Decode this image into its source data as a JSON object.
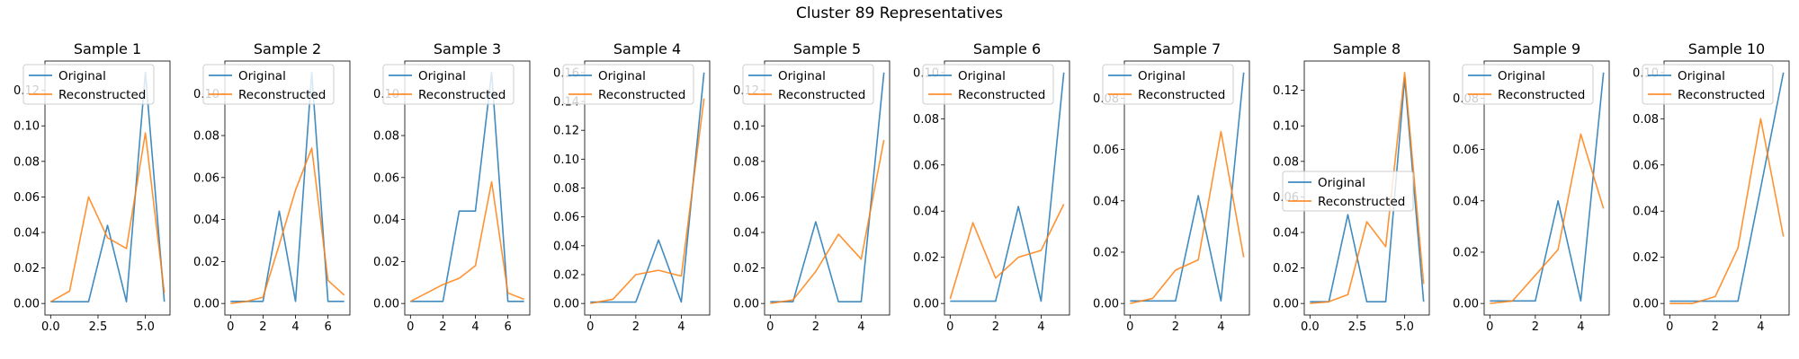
{
  "figure": {
    "suptitle": "Cluster 89 Representatives"
  },
  "legend_labels": [
    "Original",
    "Reconstructed"
  ],
  "colors": {
    "original": "#1f77b4",
    "reconstructed": "#ff7f0e"
  },
  "chart_data": [
    {
      "type": "line",
      "title": "Sample 1",
      "xlim": [
        -0.3,
        6.3
      ],
      "ylim": [
        -0.0065,
        0.1365
      ],
      "xticks": [
        0.0,
        2.5,
        5.0
      ],
      "xtick_labels": [
        "0.0",
        "2.5",
        "5.0"
      ],
      "yticks": [
        0.0,
        0.02,
        0.04,
        0.06,
        0.08,
        0.1,
        0.12
      ],
      "ytick_labels": [
        "0.00",
        "0.02",
        "0.04",
        "0.06",
        "0.08",
        "0.10",
        "0.12"
      ],
      "legend_loc": "upper-left",
      "series": [
        {
          "name": "Original",
          "x": [
            0,
            1,
            2,
            3,
            4,
            5,
            6
          ],
          "y": [
            0.001,
            0.001,
            0.001,
            0.044,
            0.001,
            0.13,
            0.001
          ]
        },
        {
          "name": "Reconstructed",
          "x": [
            0,
            1,
            2,
            3,
            4,
            5,
            6
          ],
          "y": [
            0.001,
            0.007,
            0.06,
            0.037,
            0.031,
            0.096,
            0.006
          ]
        }
      ]
    },
    {
      "type": "line",
      "title": "Sample 2",
      "xlim": [
        -0.35,
        7.35
      ],
      "ylim": [
        -0.0055,
        0.1155
      ],
      "xticks": [
        0,
        2,
        4,
        6
      ],
      "xtick_labels": [
        "0",
        "2",
        "4",
        "6"
      ],
      "yticks": [
        0.0,
        0.02,
        0.04,
        0.06,
        0.08,
        0.1
      ],
      "ytick_labels": [
        "0.00",
        "0.02",
        "0.04",
        "0.06",
        "0.08",
        "0.10"
      ],
      "legend_loc": "upper-left",
      "series": [
        {
          "name": "Original",
          "x": [
            0,
            1,
            2,
            3,
            4,
            5,
            6,
            7
          ],
          "y": [
            0.001,
            0.001,
            0.001,
            0.044,
            0.001,
            0.11,
            0.001,
            0.001
          ]
        },
        {
          "name": "Reconstructed",
          "x": [
            0,
            1,
            2,
            3,
            4,
            5,
            6,
            7
          ],
          "y": [
            0.0,
            0.001,
            0.003,
            0.028,
            0.054,
            0.074,
            0.011,
            0.004
          ]
        }
      ]
    },
    {
      "type": "line",
      "title": "Sample 3",
      "xlim": [
        -0.35,
        7.35
      ],
      "ylim": [
        -0.0055,
        0.1155
      ],
      "xticks": [
        0,
        2,
        4,
        6
      ],
      "xtick_labels": [
        "0",
        "2",
        "4",
        "6"
      ],
      "yticks": [
        0.0,
        0.02,
        0.04,
        0.06,
        0.08,
        0.1
      ],
      "ytick_labels": [
        "0.00",
        "0.02",
        "0.04",
        "0.06",
        "0.08",
        "0.10"
      ],
      "legend_loc": "upper-left",
      "series": [
        {
          "name": "Original",
          "x": [
            0,
            1,
            2,
            3,
            4,
            5,
            6,
            7
          ],
          "y": [
            0.001,
            0.001,
            0.001,
            0.044,
            0.044,
            0.11,
            0.001,
            0.001
          ]
        },
        {
          "name": "Reconstructed",
          "x": [
            0,
            1,
            2,
            3,
            4,
            5,
            6,
            7
          ],
          "y": [
            0.001,
            0.005,
            0.009,
            0.012,
            0.018,
            0.058,
            0.005,
            0.002
          ]
        }
      ]
    },
    {
      "type": "line",
      "title": "Sample 4",
      "xlim": [
        -0.25,
        5.25
      ],
      "ylim": [
        -0.008,
        0.168
      ],
      "xticks": [
        0,
        2,
        4
      ],
      "xtick_labels": [
        "0",
        "2",
        "4"
      ],
      "yticks": [
        0.0,
        0.02,
        0.04,
        0.06,
        0.08,
        0.1,
        0.12,
        0.14,
        0.16
      ],
      "ytick_labels": [
        "0.00",
        "0.02",
        "0.04",
        "0.06",
        "0.08",
        "0.10",
        "0.12",
        "0.14",
        "0.16"
      ],
      "legend_loc": "upper-left",
      "series": [
        {
          "name": "Original",
          "x": [
            0,
            1,
            2,
            3,
            4,
            5
          ],
          "y": [
            0.001,
            0.001,
            0.001,
            0.044,
            0.001,
            0.16
          ]
        },
        {
          "name": "Reconstructed",
          "x": [
            0,
            1,
            2,
            3,
            4,
            5
          ],
          "y": [
            0.0,
            0.003,
            0.02,
            0.023,
            0.019,
            0.142
          ]
        }
      ]
    },
    {
      "type": "line",
      "title": "Sample 5",
      "xlim": [
        -0.25,
        5.25
      ],
      "ylim": [
        -0.0065,
        0.1365
      ],
      "xticks": [
        0,
        2,
        4
      ],
      "xtick_labels": [
        "0",
        "2",
        "4"
      ],
      "yticks": [
        0.0,
        0.02,
        0.04,
        0.06,
        0.08,
        0.1,
        0.12
      ],
      "ytick_labels": [
        "0.00",
        "0.02",
        "0.04",
        "0.06",
        "0.08",
        "0.10",
        "0.12"
      ],
      "legend_loc": "upper-left",
      "series": [
        {
          "name": "Original",
          "x": [
            0,
            1,
            2,
            3,
            4,
            5
          ],
          "y": [
            0.001,
            0.001,
            0.046,
            0.001,
            0.001,
            0.13
          ]
        },
        {
          "name": "Reconstructed",
          "x": [
            0,
            1,
            2,
            3,
            4,
            5
          ],
          "y": [
            0.0,
            0.002,
            0.018,
            0.039,
            0.025,
            0.092
          ]
        }
      ]
    },
    {
      "type": "line",
      "title": "Sample 6",
      "xlim": [
        -0.25,
        5.25
      ],
      "ylim": [
        -0.005,
        0.105
      ],
      "xticks": [
        0,
        2,
        4
      ],
      "xtick_labels": [
        "0",
        "2",
        "4"
      ],
      "yticks": [
        0.0,
        0.02,
        0.04,
        0.06,
        0.08,
        0.1
      ],
      "ytick_labels": [
        "0.00",
        "0.02",
        "0.04",
        "0.06",
        "0.08",
        "0.10"
      ],
      "legend_loc": "upper-left",
      "series": [
        {
          "name": "Original",
          "x": [
            0,
            1,
            2,
            3,
            4,
            5
          ],
          "y": [
            0.001,
            0.001,
            0.001,
            0.042,
            0.001,
            0.1
          ]
        },
        {
          "name": "Reconstructed",
          "x": [
            0,
            1,
            2,
            3,
            4,
            5
          ],
          "y": [
            0.002,
            0.035,
            0.011,
            0.02,
            0.023,
            0.043
          ]
        }
      ]
    },
    {
      "type": "line",
      "title": "Sample 7",
      "xlim": [
        -0.25,
        5.25
      ],
      "ylim": [
        -0.0045,
        0.0945
      ],
      "xticks": [
        0,
        2,
        4
      ],
      "xtick_labels": [
        "0",
        "2",
        "4"
      ],
      "yticks": [
        0.0,
        0.02,
        0.04,
        0.06,
        0.08
      ],
      "ytick_labels": [
        "0.00",
        "0.02",
        "0.04",
        "0.06",
        "0.08"
      ],
      "legend_loc": "upper-left",
      "series": [
        {
          "name": "Original",
          "x": [
            0,
            1,
            2,
            3,
            4,
            5
          ],
          "y": [
            0.001,
            0.001,
            0.001,
            0.042,
            0.001,
            0.09
          ]
        },
        {
          "name": "Reconstructed",
          "x": [
            0,
            1,
            2,
            3,
            4,
            5
          ],
          "y": [
            0.0,
            0.002,
            0.013,
            0.017,
            0.067,
            0.018
          ]
        }
      ]
    },
    {
      "type": "line",
      "title": "Sample 8",
      "xlim": [
        -0.3,
        6.3
      ],
      "ylim": [
        -0.0065,
        0.1365
      ],
      "xticks": [
        0.0,
        2.5,
        5.0
      ],
      "xtick_labels": [
        "0.0",
        "2.5",
        "5.0"
      ],
      "yticks": [
        0.0,
        0.02,
        0.04,
        0.06,
        0.08,
        0.1,
        0.12
      ],
      "ytick_labels": [
        "0.00",
        "0.02",
        "0.04",
        "0.06",
        "0.08",
        "0.10",
        "0.12"
      ],
      "legend_loc": "center-left",
      "series": [
        {
          "name": "Original",
          "x": [
            0,
            1,
            2,
            3,
            4,
            5,
            6
          ],
          "y": [
            0.001,
            0.001,
            0.05,
            0.001,
            0.001,
            0.127,
            0.001
          ]
        },
        {
          "name": "Reconstructed",
          "x": [
            0,
            1,
            2,
            3,
            4,
            5,
            6
          ],
          "y": [
            0.0,
            0.001,
            0.005,
            0.046,
            0.032,
            0.13,
            0.011
          ]
        }
      ]
    },
    {
      "type": "line",
      "title": "Sample 9",
      "xlim": [
        -0.25,
        5.25
      ],
      "ylim": [
        -0.0045,
        0.0945
      ],
      "xticks": [
        0,
        2,
        4
      ],
      "xtick_labels": [
        "0",
        "2",
        "4"
      ],
      "yticks": [
        0.0,
        0.02,
        0.04,
        0.06,
        0.08
      ],
      "ytick_labels": [
        "0.00",
        "0.02",
        "0.04",
        "0.06",
        "0.08"
      ],
      "legend_loc": "upper-left",
      "series": [
        {
          "name": "Original",
          "x": [
            0,
            1,
            2,
            3,
            4,
            5
          ],
          "y": [
            0.001,
            0.001,
            0.001,
            0.04,
            0.001,
            0.09
          ]
        },
        {
          "name": "Reconstructed",
          "x": [
            0,
            1,
            2,
            3,
            4,
            5
          ],
          "y": [
            0.0,
            0.001,
            0.011,
            0.021,
            0.066,
            0.037
          ]
        }
      ]
    },
    {
      "type": "line",
      "title": "Sample 10",
      "xlim": [
        -0.25,
        5.25
      ],
      "ylim": [
        -0.005,
        0.105
      ],
      "xticks": [
        0,
        2,
        4
      ],
      "xtick_labels": [
        "0",
        "2",
        "4"
      ],
      "yticks": [
        0.0,
        0.02,
        0.04,
        0.06,
        0.08,
        0.1
      ],
      "ytick_labels": [
        "0.00",
        "0.02",
        "0.04",
        "0.06",
        "0.08",
        "0.10"
      ],
      "legend_loc": "upper-left",
      "series": [
        {
          "name": "Original",
          "x": [
            0,
            1,
            2,
            3,
            4,
            5
          ],
          "y": [
            0.001,
            0.001,
            0.001,
            0.001,
            0.05,
            0.1
          ]
        },
        {
          "name": "Reconstructed",
          "x": [
            0,
            1,
            2,
            3,
            4,
            5
          ],
          "y": [
            0.0,
            0.0,
            0.003,
            0.024,
            0.08,
            0.029
          ]
        }
      ]
    }
  ]
}
